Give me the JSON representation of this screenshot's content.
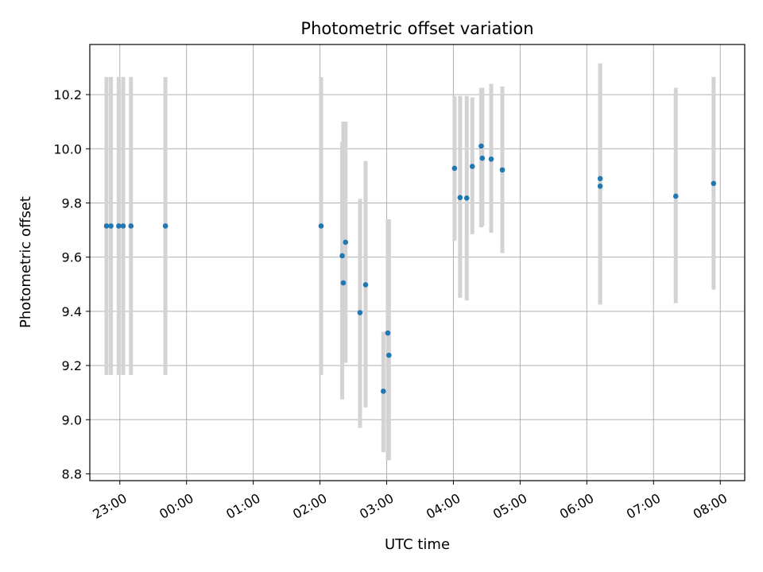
{
  "chart_data": {
    "type": "scatter",
    "title": "Photometric offset variation",
    "xlabel": "UTC time",
    "ylabel": "Photometric offset",
    "x_axis_kind": "time",
    "xlim": [
      "22:33",
      "08:22"
    ],
    "ylim": [
      8.775,
      10.385
    ],
    "x_ticks": [
      "23:00",
      "00:00",
      "01:00",
      "02:00",
      "03:00",
      "04:00",
      "05:00",
      "06:00",
      "07:00",
      "08:00"
    ],
    "y_ticks": [
      8.8,
      9.0,
      9.2,
      9.4,
      9.6,
      9.8,
      10.0,
      10.2
    ],
    "grid": true,
    "point_color": "#1f77b4",
    "errorbar_color": "#d3d3d3",
    "series": [
      {
        "x": [
          "22:48",
          "22:52",
          "22:59",
          "23:03",
          "23:10",
          "23:41",
          "02:01",
          "02:20",
          "02:21",
          "02:23",
          "02:36",
          "02:41",
          "02:57",
          "03:01",
          "03:02",
          "04:01",
          "04:06",
          "04:12",
          "04:17",
          "04:25",
          "04:26",
          "04:34",
          "04:44",
          "06:12",
          "06:12",
          "07:20",
          "07:54"
        ],
        "y": [
          9.715,
          9.715,
          9.715,
          9.715,
          9.715,
          9.715,
          9.715,
          9.605,
          9.505,
          9.655,
          9.395,
          9.498,
          9.105,
          9.32,
          9.238,
          9.928,
          9.82,
          9.818,
          9.935,
          10.01,
          9.965,
          9.962,
          9.922,
          9.89,
          9.862,
          9.825,
          9.872
        ],
        "yerr_low": [
          9.165,
          9.165,
          9.165,
          9.165,
          9.165,
          9.165,
          9.165,
          9.075,
          9.21,
          9.21,
          8.97,
          9.045,
          8.88,
          8.85,
          8.85,
          9.66,
          9.45,
          9.44,
          9.685,
          9.71,
          9.715,
          9.69,
          9.615,
          9.425,
          9.425,
          9.43,
          9.48
        ],
        "yerr_high": [
          10.265,
          10.265,
          10.265,
          10.265,
          10.265,
          10.265,
          10.265,
          10.025,
          10.1,
          10.1,
          9.815,
          9.955,
          9.325,
          9.74,
          9.74,
          10.195,
          10.195,
          10.195,
          10.19,
          10.225,
          10.225,
          10.24,
          10.23,
          10.315,
          10.315,
          10.225,
          10.265
        ]
      }
    ]
  }
}
